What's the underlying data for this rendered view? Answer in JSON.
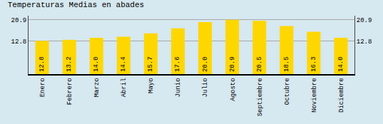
{
  "chart_data": {
    "type": "bar",
    "title": "Temperaturas Medias en abades",
    "categories": [
      "Enero",
      "Febrero",
      "Marzo",
      "Abril",
      "Mayo",
      "Junio",
      "Julio",
      "Agosto",
      "Septiembre",
      "Octubre",
      "Noviembre",
      "Diciembre"
    ],
    "values": [
      12.8,
      13.2,
      14.0,
      14.4,
      15.7,
      17.6,
      20.0,
      20.9,
      20.5,
      18.5,
      16.3,
      14.0
    ],
    "value_labels": [
      "12.8",
      "13.2",
      "14.0",
      "14.4",
      "15.7",
      "17.6",
      "20.0",
      "20.9",
      "20.5",
      "18.5",
      "16.3",
      "14.0"
    ],
    "color": "#FFD700",
    "ylim": [
      0,
      22.5
    ],
    "yticks": [
      12.8,
      20.9
    ],
    "y2lim": [
      0,
      22.5
    ],
    "y2ticks": [
      12.8,
      20.9
    ],
    "grid": true,
    "data_labels": true
  }
}
